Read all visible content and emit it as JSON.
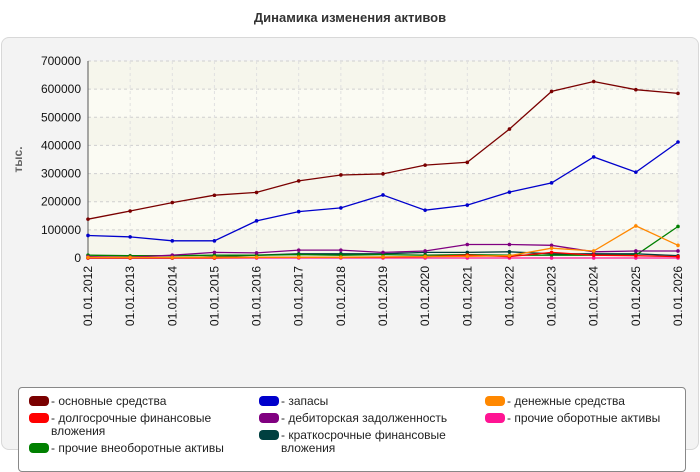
{
  "chart_data": {
    "type": "line",
    "title": "Динамика изменения активов",
    "ylabel": "тыс.",
    "xlabel": "",
    "ylim": [
      0,
      700000
    ],
    "y_ticks": [
      "0",
      "100000",
      "200000",
      "300000",
      "400000",
      "500000",
      "600000",
      "700000"
    ],
    "categories": [
      "01.01.2012",
      "01.01.2013",
      "01.01.2014",
      "01.01.2015",
      "01.01.2016",
      "01.01.2017",
      "01.01.2018",
      "01.01.2019",
      "01.01.2020",
      "01.01.2021",
      "01.01.2022",
      "01.01.2023",
      "01.01.2024",
      "01.01.2025",
      "01.01.2026"
    ],
    "grid": true,
    "legend_position": "bottom",
    "series": [
      {
        "name": "- основные средства",
        "color": "#7a0000",
        "values": [
          138000,
          167000,
          197000,
          223000,
          233000,
          274000,
          295000,
          299000,
          330000,
          340000,
          458000,
          592000,
          627000,
          598000,
          585000
        ]
      },
      {
        "name": "- запасы",
        "color": "#0000cc",
        "values": [
          80000,
          75000,
          61000,
          61000,
          132000,
          165000,
          178000,
          224000,
          170000,
          188000,
          234000,
          267000,
          359000,
          305000,
          412000
        ]
      },
      {
        "name": "- денежные средства",
        "color": "#ff8800",
        "values": [
          2000,
          2000,
          2000,
          3000,
          3000,
          3000,
          3000,
          4000,
          5000,
          6000,
          8000,
          35000,
          25000,
          114000,
          45000
        ]
      },
      {
        "name": "- долгосрочные финансовые вложения",
        "color": "#ff0000",
        "values": [
          0,
          0,
          0,
          0,
          2000,
          3000,
          3000,
          3000,
          5000,
          10000,
          5000,
          20000,
          10000,
          8000,
          5000
        ]
      },
      {
        "name": "- дебиторская задолженность",
        "color": "#800080",
        "values": [
          5000,
          3000,
          10000,
          20000,
          18000,
          28000,
          28000,
          20000,
          25000,
          48000,
          48000,
          45000,
          22000,
          25000,
          25000
        ]
      },
      {
        "name": "- прочие оборотные активы",
        "color": "#ff1493",
        "values": [
          0,
          0,
          0,
          0,
          0,
          0,
          0,
          0,
          0,
          0,
          0,
          0,
          0,
          0,
          0
        ]
      },
      {
        "name": "- прочие внеоборотные активы",
        "color": "#008000",
        "values": [
          10000,
          8000,
          8000,
          10000,
          10000,
          12000,
          10000,
          12000,
          10000,
          12000,
          10000,
          10000,
          10000,
          10000,
          112000
        ]
      },
      {
        "name": "- краткосрочные финансовые вложения",
        "color": "#004040",
        "values": [
          0,
          0,
          0,
          5000,
          10000,
          15000,
          15000,
          15000,
          20000,
          20000,
          22000,
          15000,
          15000,
          15000,
          8000
        ]
      }
    ]
  }
}
